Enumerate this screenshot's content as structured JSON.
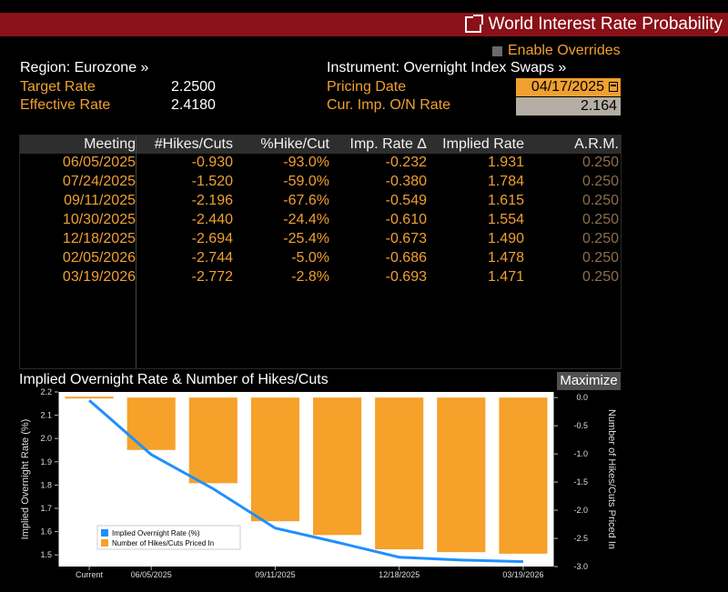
{
  "window": {
    "title": "World Interest Rate Probability",
    "icon": "export-icon"
  },
  "overrides": {
    "label": "Enable Overrides",
    "checked": false
  },
  "left_info": {
    "region": "Region: Eurozone »",
    "target_rate_label": "Target Rate",
    "target_rate_value": "2.2500",
    "effective_rate_label": "Effective Rate",
    "effective_rate_value": "2.4180"
  },
  "right_info": {
    "instrument": "Instrument: Overnight Index Swaps »",
    "pricing_date_label": "Pricing Date",
    "pricing_date_value": "04/17/2025",
    "cur_imp_label": "Cur. Imp. O/N Rate",
    "cur_imp_value": "2.164"
  },
  "table": {
    "headers": [
      "Meeting",
      "#Hikes/Cuts",
      "%Hike/Cut",
      "Imp. Rate Δ",
      "Implied Rate",
      "A.R.M."
    ],
    "rows": [
      [
        "06/05/2025",
        "-0.930",
        "-93.0%",
        "-0.232",
        "1.931",
        "0.250"
      ],
      [
        "07/24/2025",
        "-1.520",
        "-59.0%",
        "-0.380",
        "1.784",
        "0.250"
      ],
      [
        "09/11/2025",
        "-2.196",
        "-67.6%",
        "-0.549",
        "1.615",
        "0.250"
      ],
      [
        "10/30/2025",
        "-2.440",
        "-24.4%",
        "-0.610",
        "1.554",
        "0.250"
      ],
      [
        "12/18/2025",
        "-2.694",
        "-25.4%",
        "-0.673",
        "1.490",
        "0.250"
      ],
      [
        "02/05/2026",
        "-2.744",
        "-5.0%",
        "-0.686",
        "1.478",
        "0.250"
      ],
      [
        "03/19/2026",
        "-2.772",
        "-2.8%",
        "-0.693",
        "1.471",
        "0.250"
      ]
    ]
  },
  "chart_header": {
    "title": "Implied Overnight Rate & Number of Hikes/Cuts",
    "maximize_label": "Maximize"
  },
  "chart_data": {
    "type": "bar",
    "categories": [
      "Current",
      "06/05/2025",
      "07/24/2025",
      "09/11/2025",
      "10/30/2025",
      "12/18/2025",
      "02/05/2026",
      "03/19/2026"
    ],
    "x_tick_labels": [
      "Current",
      "06/05/2025",
      "09/11/2025",
      "12/18/2025",
      "03/19/2026"
    ],
    "series": [
      {
        "name": "Implied Overnight Rate (%)",
        "kind": "line",
        "axis": "left",
        "color": "#1f8fff",
        "values": [
          2.164,
          1.931,
          1.784,
          1.615,
          1.554,
          1.49,
          1.478,
          1.471
        ]
      },
      {
        "name": "Number of Hikes/Cuts Priced In",
        "kind": "bar",
        "axis": "right",
        "color": "#f5a12a",
        "values": [
          0,
          -0.93,
          -1.52,
          -2.196,
          -2.44,
          -2.694,
          -2.744,
          -2.772
        ]
      }
    ],
    "ylabel_left": "Implied Overnight Rate (%)",
    "ylabel_right": "Number of Hikes/Cuts Priced In",
    "ylim_left": [
      1.45,
      2.2
    ],
    "ylim_right": [
      -3.0,
      0.1
    ],
    "yticks_left": [
      "2.2",
      "2.1",
      "2.0",
      "1.9",
      "1.8",
      "1.7",
      "1.6",
      "1.5"
    ],
    "yticks_right": [
      "0.0",
      "-0.5",
      "-1.0",
      "-1.5",
      "-2.0",
      "-2.5",
      "-3.0"
    ],
    "legend_position": "bottom-left",
    "background": "#ffffff",
    "grid": false
  }
}
